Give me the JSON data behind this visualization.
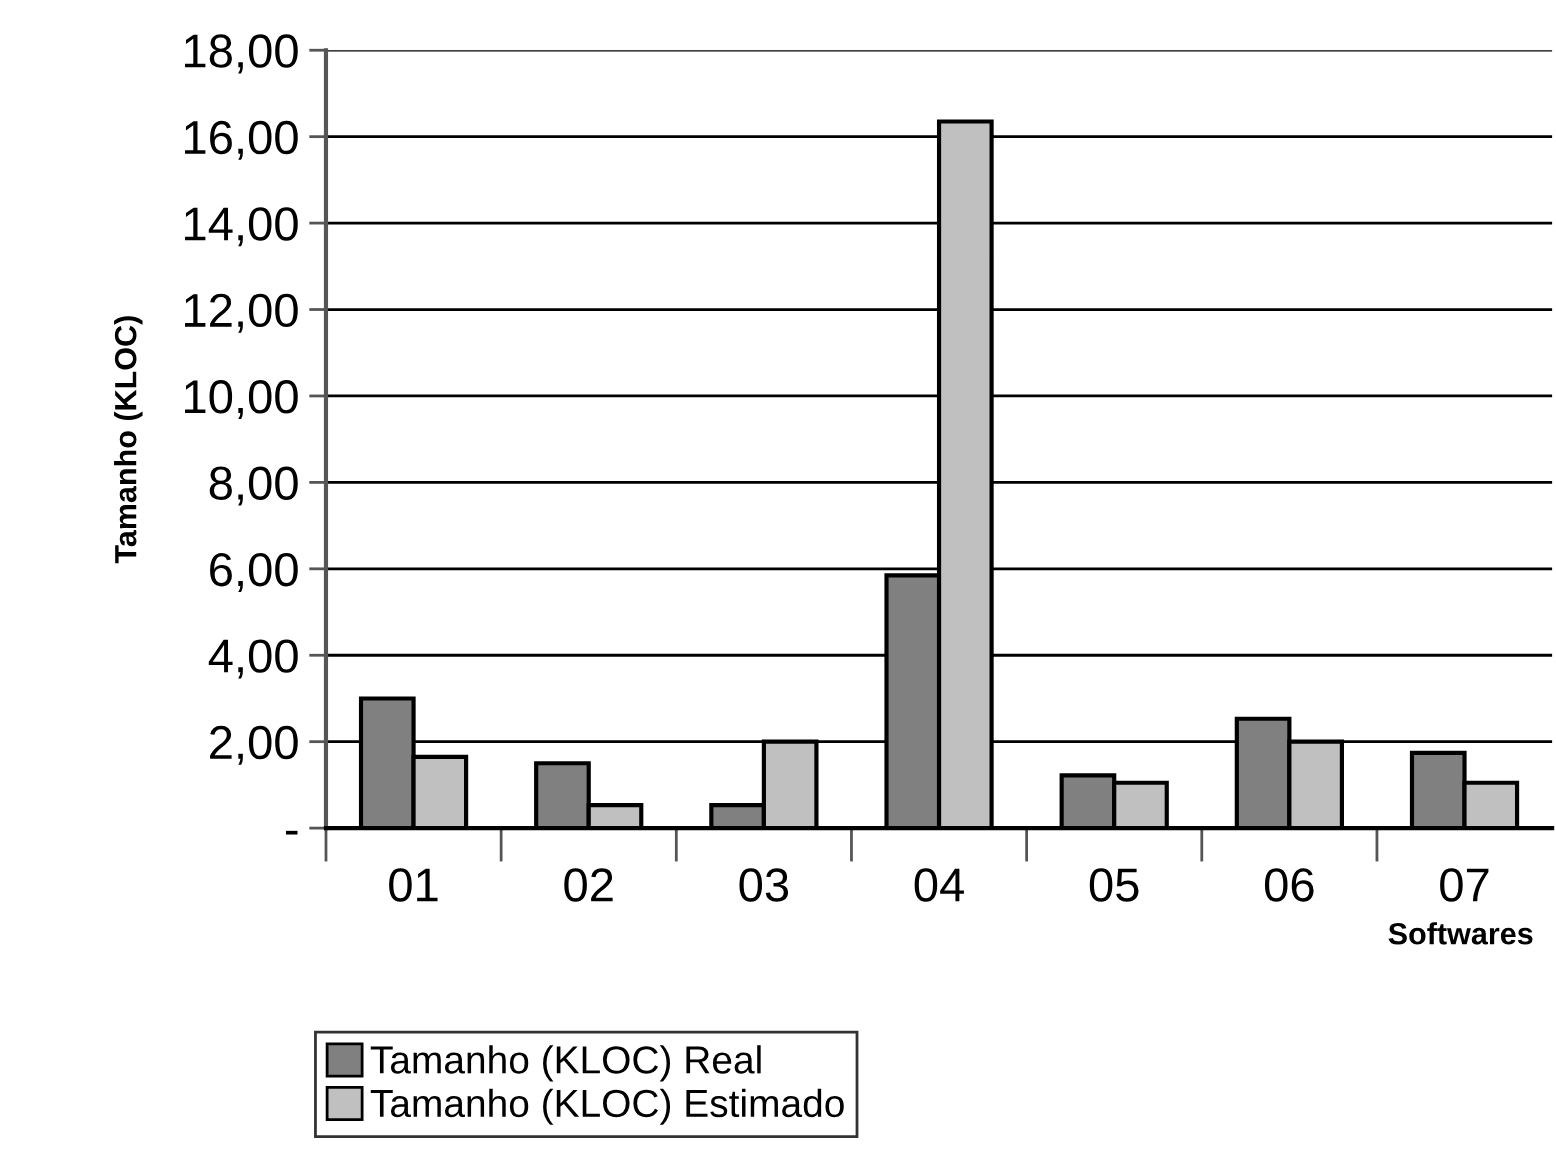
{
  "chart_data": {
    "type": "bar",
    "xlabel": "Softwares",
    "ylabel": "Tamanho (KLOC)",
    "categories": [
      "01",
      "02",
      "03",
      "04",
      "05",
      "06",
      "07"
    ],
    "series": [
      {
        "name": "Tamanho (KLOC) Real",
        "color": "#808080",
        "values": [
          3.0,
          1.5,
          0.53,
          5.85,
          1.22,
          2.53,
          1.74
        ]
      },
      {
        "name": "Tamanho (KLOC) Estimado",
        "color": "#c0c0c0",
        "values": [
          1.65,
          0.53,
          2.0,
          16.35,
          1.05,
          2.0,
          1.05
        ]
      }
    ],
    "ylim": [
      0,
      18
    ],
    "yticks": [
      {
        "value": 0,
        "label": "-"
      },
      {
        "value": 2,
        "label": "2,00"
      },
      {
        "value": 4,
        "label": "4,00"
      },
      {
        "value": 6,
        "label": "6,00"
      },
      {
        "value": 8,
        "label": "8,00"
      },
      {
        "value": 10,
        "label": "10,00"
      },
      {
        "value": 12,
        "label": "12,00"
      },
      {
        "value": 14,
        "label": "14,00"
      },
      {
        "value": 16,
        "label": "16,00"
      },
      {
        "value": 18,
        "label": "18,00"
      }
    ],
    "grid": "y",
    "legend": "bottom"
  }
}
